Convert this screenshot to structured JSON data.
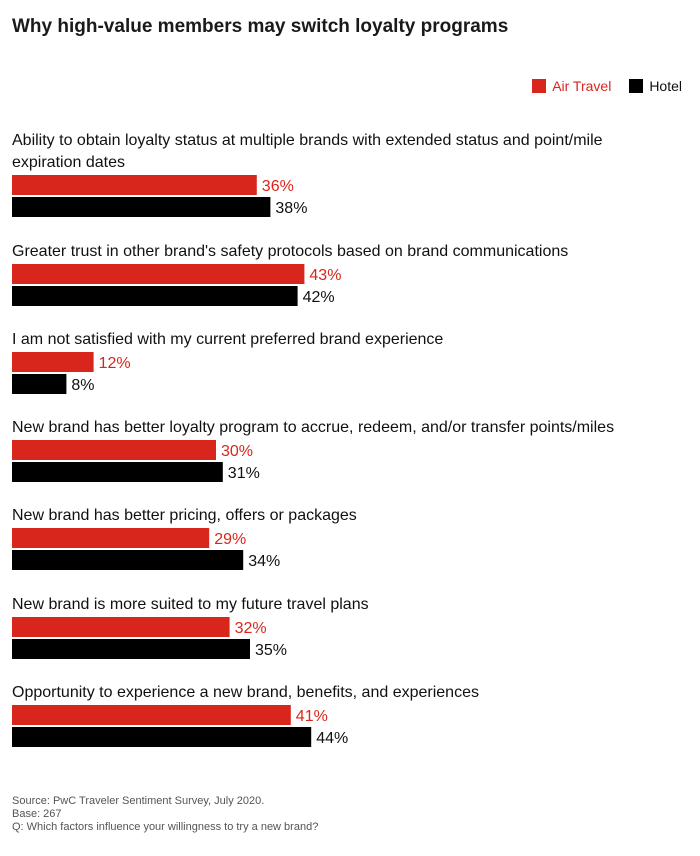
{
  "chart_data": {
    "type": "bar",
    "orientation": "horizontal",
    "title": "Why high-value members may switch loyalty programs",
    "categories": [
      [
        "Ability to obtain loyalty status at multiple brands with extended status and point/mile",
        "expiration dates"
      ],
      [
        "Greater trust in other brand's safety protocols based on brand communications"
      ],
      [
        "I am not satisfied with my current preferred brand experience"
      ],
      [
        "New brand has better loyalty program to accrue, redeem, and/or transfer points/miles"
      ],
      [
        "New brand has better pricing, offers or packages"
      ],
      [
        "New brand is more suited to my future travel plans"
      ],
      [
        "Opportunity to experience a new brand, benefits, and experiences"
      ]
    ],
    "series": [
      {
        "name": "Air Travel",
        "color": "#d9261c",
        "values": [
          36,
          43,
          12,
          30,
          29,
          32,
          41
        ]
      },
      {
        "name": "Hotel",
        "color": "#000000",
        "values": [
          38,
          42,
          8,
          31,
          34,
          35,
          44
        ]
      }
    ],
    "value_suffix": "%",
    "legend_position": "top-right",
    "grid": false
  },
  "legend": {
    "air_label": "Air Travel",
    "hotel_label": "Hotel"
  },
  "footer": {
    "source": "Source: PwC Traveler Sentiment Survey, July 2020.",
    "base": "Base: 267",
    "question": "Q: Which factors influence your willingness to try a new brand?"
  }
}
